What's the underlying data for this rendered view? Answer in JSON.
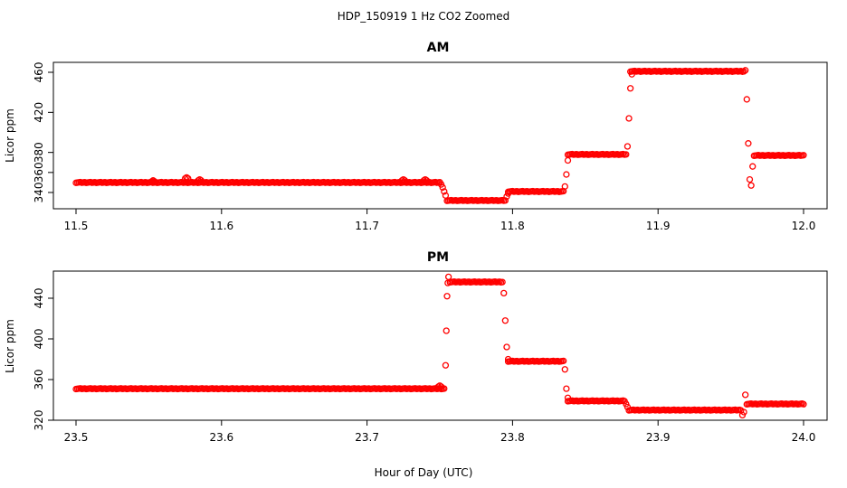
{
  "suptitle": "HDP_150919  1 Hz CO2 Zoomed",
  "xlabel_shared": "Hour of Day (UTC)",
  "point_color": "#ff0000",
  "chart_data": [
    {
      "type": "scatter",
      "title": "AM",
      "ylabel": "Licor ppm",
      "xlim": [
        11.5,
        12.0
      ],
      "ylim": [
        330,
        468
      ],
      "xticks": [
        11.5,
        11.6,
        11.7,
        11.8,
        11.9,
        12.0
      ],
      "xtick_labels": [
        "11.5",
        "11.6",
        "11.7",
        "11.8",
        "11.9",
        "12.0"
      ],
      "yticks": [
        340,
        360,
        380,
        420,
        460
      ],
      "ytick_labels": [
        "340",
        "360",
        "380",
        "420",
        "460"
      ],
      "grid": false,
      "segments": [
        {
          "x_start": 11.5,
          "x_end": 11.75,
          "y": 350
        },
        {
          "x_start": 11.755,
          "x_end": 11.795,
          "y": 332
        },
        {
          "x_start": 11.797,
          "x_end": 11.835,
          "y": 341
        },
        {
          "x_start": 11.838,
          "x_end": 11.878,
          "y": 378
        },
        {
          "x_start": 11.881,
          "x_end": 11.959,
          "y": 461
        },
        {
          "x_start": 11.966,
          "x_end": 12.0,
          "y": 377
        }
      ],
      "bumps": [
        {
          "x": 11.553,
          "y": 352
        },
        {
          "x": 11.576,
          "y": 355
        },
        {
          "x": 11.585,
          "y": 353
        },
        {
          "x": 11.725,
          "y": 353
        },
        {
          "x": 11.74,
          "y": 353
        }
      ],
      "transitions": [
        {
          "x": [
            11.751,
            11.752,
            11.753,
            11.754
          ],
          "y": [
            348,
            345,
            341,
            337
          ]
        },
        {
          "x": [
            11.796,
            11.797
          ],
          "y": [
            336,
            339
          ]
        },
        {
          "x": [
            11.836,
            11.837,
            11.838
          ],
          "y": [
            346,
            358,
            372
          ]
        },
        {
          "x": [
            11.879,
            11.88,
            11.881,
            11.882
          ],
          "y": [
            386,
            414,
            444,
            458
          ]
        },
        {
          "x": [
            11.96,
            11.961,
            11.962,
            11.963,
            11.964,
            11.965
          ],
          "y": [
            462,
            433,
            389,
            353,
            347,
            366
          ]
        }
      ]
    },
    {
      "type": "scatter",
      "title": "PM",
      "ylabel": "Licor ppm",
      "xlim": [
        23.5,
        24.0
      ],
      "ylim": [
        320,
        462
      ],
      "xticks": [
        23.5,
        23.6,
        23.7,
        23.8,
        23.9,
        24.0
      ],
      "xtick_labels": [
        "23.5",
        "23.6",
        "23.7",
        "23.8",
        "23.9",
        "24.0"
      ],
      "yticks": [
        320,
        360,
        400,
        440
      ],
      "ytick_labels": [
        "320",
        "360",
        "400",
        "440"
      ],
      "grid": false,
      "segments": [
        {
          "x_start": 23.5,
          "x_end": 23.753,
          "y": 351
        },
        {
          "x_start": 23.757,
          "x_end": 23.793,
          "y": 456
        },
        {
          "x_start": 23.797,
          "x_end": 23.835,
          "y": 378
        },
        {
          "x_start": 23.838,
          "x_end": 23.877,
          "y": 339
        },
        {
          "x_start": 23.88,
          "x_end": 23.957,
          "y": 330
        },
        {
          "x_start": 23.961,
          "x_end": 24.0,
          "y": 336
        }
      ],
      "bumps": [
        {
          "x": 23.75,
          "y": 354
        }
      ],
      "transitions": [
        {
          "x": [
            23.754,
            23.7545,
            23.755,
            23.7555,
            23.756
          ],
          "y": [
            374,
            408,
            442,
            455,
            461
          ]
        },
        {
          "x": [
            23.794,
            23.795,
            23.796,
            23.797
          ],
          "y": [
            445,
            418,
            392,
            380
          ]
        },
        {
          "x": [
            23.836,
            23.837,
            23.838
          ],
          "y": [
            370,
            351,
            342
          ]
        },
        {
          "x": [
            23.878,
            23.879
          ],
          "y": [
            336,
            333
          ]
        },
        {
          "x": [
            23.958,
            23.959,
            23.96
          ],
          "y": [
            325,
            328,
            345
          ]
        }
      ]
    }
  ]
}
